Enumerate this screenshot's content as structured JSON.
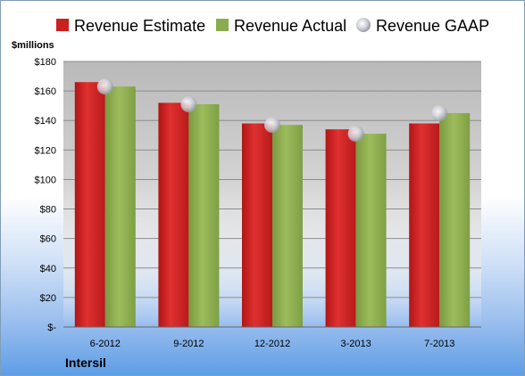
{
  "company": "Intersil",
  "chart_data": {
    "type": "bar",
    "unit_label": "$millions",
    "categories": [
      "6-2012",
      "9-2012",
      "12-2012",
      "3-2013",
      "7-2013"
    ],
    "series": [
      {
        "name": "Revenue Estimate",
        "type": "bar",
        "color": "#cc1f1f",
        "values": [
          166,
          152,
          138,
          134,
          138
        ]
      },
      {
        "name": "Revenue Actual",
        "type": "bar",
        "color": "#8aab4f",
        "values": [
          163,
          151,
          137,
          131,
          145
        ]
      },
      {
        "name": "Revenue GAAP",
        "type": "marker",
        "color": "#c8c8d2",
        "values": [
          163,
          151,
          137,
          131,
          145
        ]
      }
    ],
    "ylim": [
      0,
      180
    ],
    "yticks": [
      0,
      20,
      40,
      60,
      80,
      100,
      120,
      140,
      160,
      180
    ],
    "ytick_labels": [
      "$-",
      "$20",
      "$40",
      "$60",
      "$80",
      "$100",
      "$120",
      "$140",
      "$160",
      "$180"
    ],
    "grid": true,
    "legend_position": "top"
  }
}
